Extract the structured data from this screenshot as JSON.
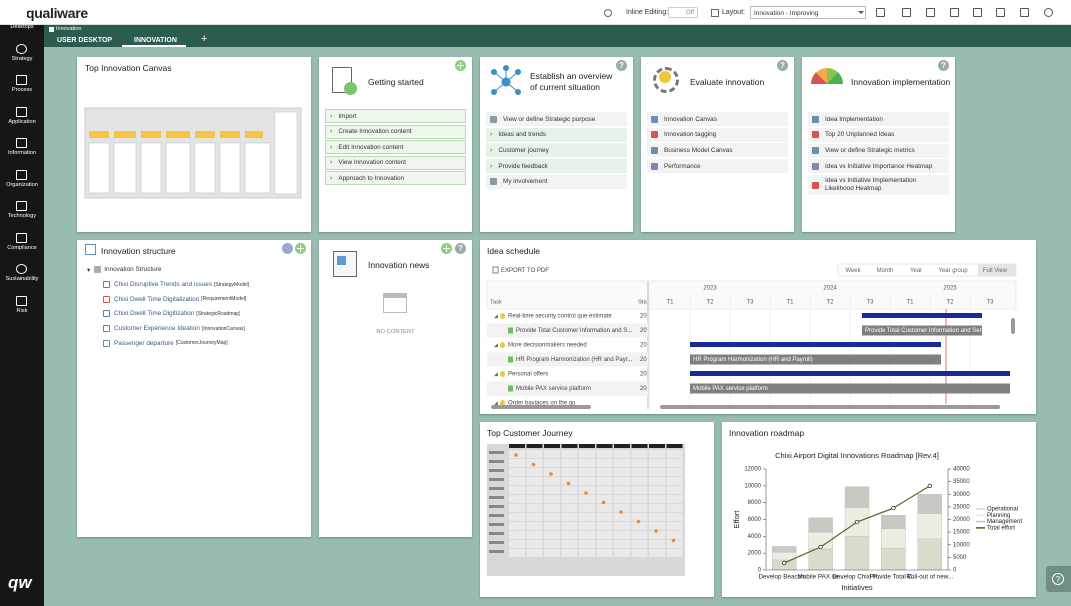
{
  "topbar": {
    "logo": "qualiware",
    "inline_editing": "Inline Editing:",
    "toggle": "Off",
    "layout_label": "Layout:",
    "layout_value": "Innovation - Improving"
  },
  "sidebar": {
    "items": [
      "Desktops",
      "Strategy",
      "Process",
      "Application",
      "Information",
      "Organization",
      "Technology",
      "Compliance",
      "Sustainability",
      "Risk"
    ],
    "logo": "qw"
  },
  "tabs": {
    "breadcrumb": "Innovation",
    "items": [
      "USER DESKTOP",
      "INNOVATION"
    ],
    "add": "+"
  },
  "help_icon": "?",
  "cards": {
    "top_canvas": {
      "title": "Top Innovation Canvas"
    },
    "getting_started": {
      "title": "Getting started",
      "links": [
        "Import",
        "Create Innovation content",
        "Edit Innovation content",
        "View Innovation content",
        "Approach to Innovation"
      ]
    },
    "overview": {
      "title": "Establish an overview of current situation",
      "links": [
        "View or define Strategic purpose",
        "Ideas and trends",
        "Customer journey",
        "Provide feedback",
        "My involvement"
      ]
    },
    "evaluate": {
      "title": "Evaluate innovation",
      "links": [
        "Innovation Canvas",
        "Innovation tagging",
        "Business Model Canvas",
        "Performance"
      ]
    },
    "implementation": {
      "title": "Innovation implementation",
      "links": [
        "Idea Implementation",
        "Top 20 Unplanned Ideas",
        "View or define Strategic metrics",
        "Idea vs Initiative Importance Heatmap",
        "Idea vs Initiative Implementation Likelihood Heatmap"
      ]
    },
    "structure": {
      "title": "Innovation structure",
      "root": "Innovation Structure",
      "items": [
        {
          "name": "Chixi Disruptive Trends and issues",
          "type": "[StrategyModel]"
        },
        {
          "name": "Chixi Dwell Time Digitalization",
          "type": "[RequirementModel]"
        },
        {
          "name": "Chixi Dwell Time Digitization",
          "type": "[StrategicRoadmap]"
        },
        {
          "name": "Customer Experience Ideation",
          "type": "[InnovationCanvas]"
        },
        {
          "name": "Passenger departure",
          "type": "[CustomerJourneyMap]"
        }
      ]
    },
    "news": {
      "title": "Innovation news",
      "empty": "NO CONTENT"
    },
    "schedule": {
      "title": "Idea schedule",
      "export": "EXPORT TO PDF",
      "views": [
        "Week",
        "Month",
        "Year",
        "Year group",
        "Full View"
      ],
      "col_task": "Task",
      "col_start": "Sta",
      "years": [
        "2023",
        "2024",
        "2025"
      ],
      "terms": [
        "T1",
        "T2",
        "T3"
      ],
      "rows": [
        {
          "task": "Real-time security control que estimate",
          "start": "20"
        },
        {
          "task": "Provide Total Customer Information and S...",
          "start": "20",
          "bar_label": "Provide Total Customer Information and Serv"
        },
        {
          "task": "More decisionmakers needed",
          "start": "20"
        },
        {
          "task": "HR Program Harmonization (HR and Payr...",
          "start": "20",
          "bar_label": "HR Program Harmonization (HR and Payroll)"
        },
        {
          "task": "Personal offers",
          "start": "20"
        },
        {
          "task": "Mobile PAX service platform",
          "start": "20",
          "bar_label": "Mobile PAX service platform"
        },
        {
          "task": "Order baviaces on the go"
        }
      ]
    },
    "journey": {
      "title": "Top Customer Journey"
    },
    "roadmap": {
      "title": "Innovation roadmap"
    }
  },
  "chart_data": {
    "type": "bar",
    "title": "Chixi Airport Digital Innovations Roadmap [Rev.4]",
    "x_label": "Initiatives",
    "y_label": "Effort",
    "categories": [
      "Develop Beacon...",
      "Mobile PAX se...",
      "Develop Chixi P...",
      "Provide Total C...",
      "Roll-out of new..."
    ],
    "series": [
      {
        "name": "Operational",
        "color": "#d9dccb",
        "values": [
          1200,
          2500,
          4000,
          2600,
          3700
        ]
      },
      {
        "name": "Planning",
        "color": "#eceee4",
        "values": [
          900,
          2000,
          3400,
          2300,
          3000
        ]
      },
      {
        "name": "Management",
        "color": "#c9c9c3",
        "values": [
          700,
          1700,
          2500,
          1600,
          2300
        ]
      },
      {
        "name": "Total effort",
        "color": "#4f6b22",
        "type": "line",
        "axis": "y2",
        "values": [
          2800,
          9100,
          19000,
          24500,
          33300
        ]
      }
    ],
    "ylim": [
      0,
      12000
    ],
    "yticks": [
      0,
      2000,
      4000,
      6000,
      8000,
      10000,
      12000
    ],
    "y2lim": [
      0,
      40000
    ],
    "y2ticks": [
      0,
      5000,
      10000,
      15000,
      20000,
      25000,
      30000,
      35000,
      40000
    ],
    "legend": "right"
  }
}
